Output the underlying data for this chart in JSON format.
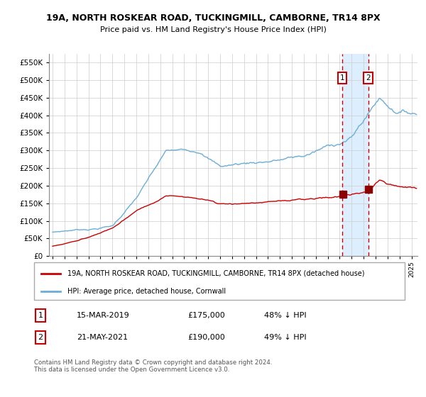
{
  "title1": "19A, NORTH ROSKEAR ROAD, TUCKINGMILL, CAMBORNE, TR14 8PX",
  "title2": "Price paid vs. HM Land Registry's House Price Index (HPI)",
  "legend1": "19A, NORTH ROSKEAR ROAD, TUCKINGMILL, CAMBORNE, TR14 8PX (detached house)",
  "legend2": "HPI: Average price, detached house, Cornwall",
  "transaction1_date": "15-MAR-2019",
  "transaction1_price": 175000,
  "transaction1_pct": "48% ↓ HPI",
  "transaction2_date": "21-MAY-2021",
  "transaction2_price": 190000,
  "transaction2_pct": "49% ↓ HPI",
  "transaction1_year": 2019.21,
  "transaction2_year": 2021.38,
  "footer": "Contains HM Land Registry data © Crown copyright and database right 2024.\nThis data is licensed under the Open Government Licence v3.0.",
  "hpi_color": "#6baed6",
  "property_color": "#cc0000",
  "marker_color": "#8b0000",
  "vline_color": "#cc0000",
  "highlight_color": "#ddeeff",
  "ylim": [
    0,
    575000
  ],
  "xlim_start": 1994.7,
  "xlim_end": 2025.5,
  "yticks": [
    0,
    50000,
    100000,
    150000,
    200000,
    250000,
    300000,
    350000,
    400000,
    450000,
    500000,
    550000
  ]
}
